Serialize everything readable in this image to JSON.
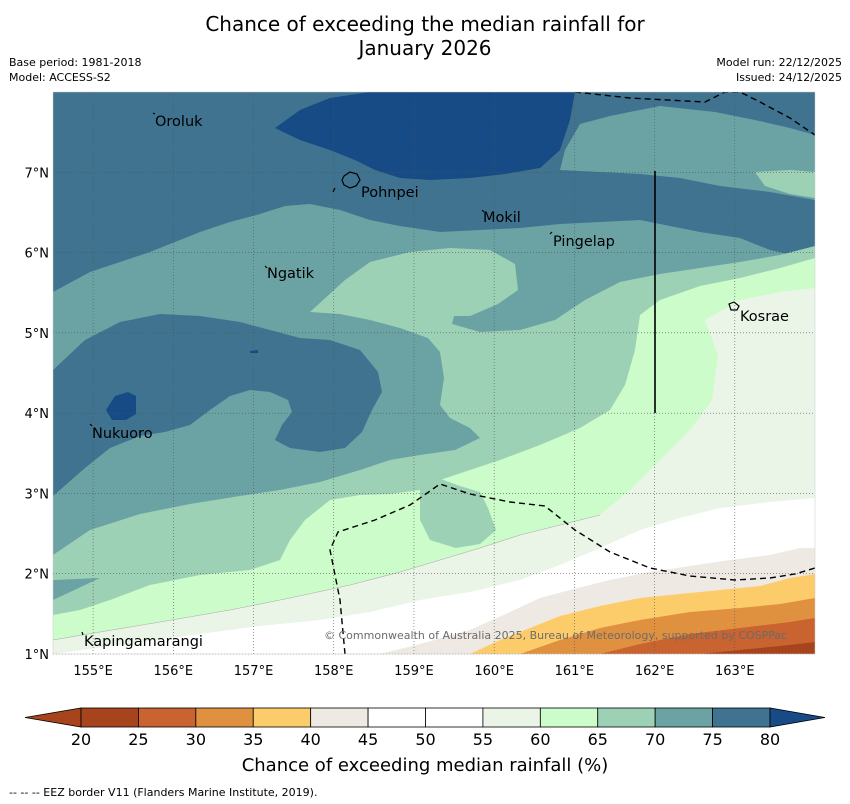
{
  "title": {
    "line1": "Chance of exceeding the median rainfall for",
    "line2": "January 2026"
  },
  "meta": {
    "base_period": "Base period: 1981-2018",
    "model": "Model: ACCESS-S2",
    "model_run": "Model run: 22/12/2025",
    "issued": "Issued: 24/12/2025"
  },
  "colors": {
    "c20": "#a8441d",
    "c25": "#c9632f",
    "c30": "#e0913f",
    "c35": "#fdcc6a",
    "c40": "#eee9e3",
    "c45": "#ffffff",
    "c50": "#ffffff",
    "c55": "#eaf5e8",
    "c60": "#ccfcc9",
    "c65": "#9dd1b6",
    "c70": "#6ba3a5",
    "c75": "#40738f",
    "c80": "#164b85",
    "eez_line": "#000000",
    "grid": "#555555"
  },
  "map": {
    "lat_labels": [
      "7°N",
      "6°N",
      "5°N",
      "4°N",
      "3°N",
      "2°N",
      "1°N"
    ],
    "lat_values": [
      7,
      6,
      5,
      4,
      3,
      2,
      1
    ],
    "lon_labels": [
      "155°E",
      "156°E",
      "157°E",
      "158°E",
      "159°E",
      "160°E",
      "161°E",
      "162°E",
      "163°E"
    ],
    "lon_values": [
      155,
      156,
      157,
      158,
      159,
      160,
      161,
      162,
      163
    ],
    "places": {
      "oroluk": "Oroluk",
      "pohnpei": "Pohnpei",
      "mokil": "Mokil",
      "pingelap": "Pingelap",
      "ngatik": "Ngatik",
      "kosrae": "Kosrae",
      "nukuoro": "Nukuoro",
      "kapingamarangi": "Kapingamarangi"
    },
    "copyright": "© Commonwealth of Australia 2025, Bureau of Meteorology, supported by COSPPac"
  },
  "colorbar": {
    "ticks": [
      "20",
      "25",
      "30",
      "35",
      "40",
      "45",
      "50",
      "55",
      "60",
      "65",
      "70",
      "75",
      "80"
    ],
    "label": "Chance of exceeding median rainfall (%)"
  },
  "eez_note": "--  --  -- EEZ border V11 (Flanders Marine Institute, 2019)."
}
